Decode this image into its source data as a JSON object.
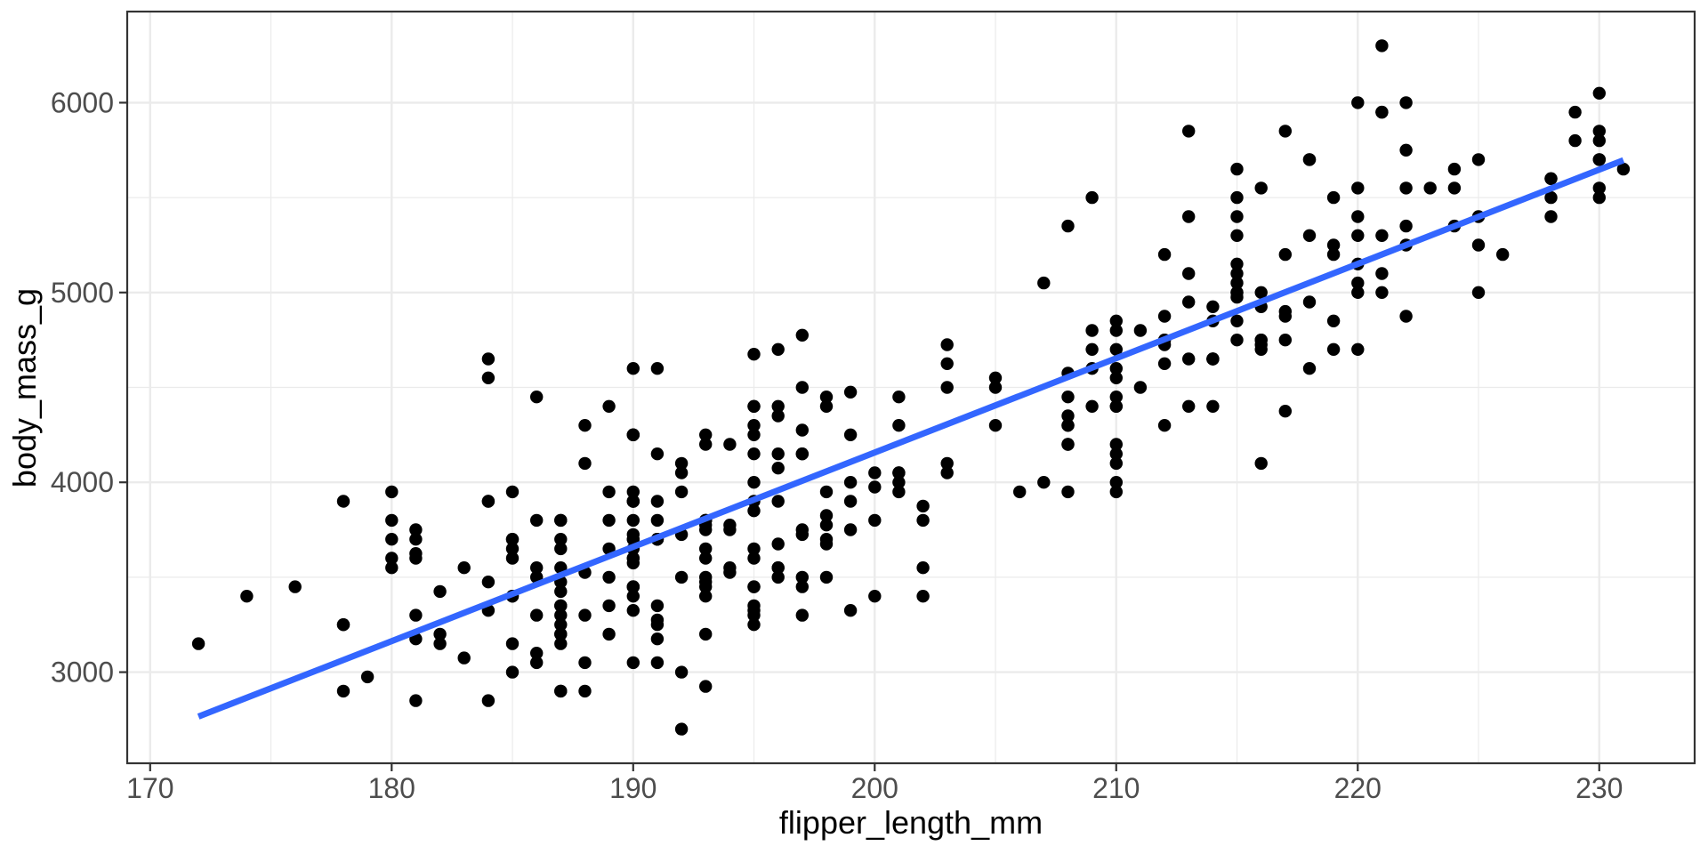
{
  "chart_data": {
    "type": "scatter",
    "title": "",
    "xlabel": "flipper_length_mm",
    "ylabel": "body_mass_g",
    "xlim": [
      169.05,
      233.95
    ],
    "ylim": [
      2520,
      6480
    ],
    "x_ticks": [
      170,
      180,
      190,
      200,
      210,
      220,
      230
    ],
    "y_ticks": [
      3000,
      4000,
      5000,
      6000
    ],
    "x_minor_gridlines": [
      175,
      185,
      195,
      205,
      215,
      225
    ],
    "y_minor_gridlines": [
      3500,
      4500,
      5500
    ],
    "grid": true,
    "legend_position": "none",
    "style": {
      "point_color": "#000000",
      "point_radius": 7.2,
      "line_color": "#3366FF",
      "line_width": 7,
      "grid_color": "#ebebeb",
      "grid_major_width": 2.4,
      "grid_minor_width": 1.2,
      "panel_border_color": "#333333",
      "panel_background": "#ffffff",
      "tick_color": "#333333",
      "tick_label_color": "#4d4d4d",
      "axis_title_color": "#000000"
    },
    "trend_line": {
      "method": "lm",
      "x1": 172,
      "y1": 2766,
      "x2": 231,
      "y2": 5697
    },
    "points": [
      [
        181,
        3750
      ],
      [
        186,
        3800
      ],
      [
        195,
        3250
      ],
      [
        193,
        3450
      ],
      [
        190,
        3650
      ],
      [
        181,
        3625
      ],
      [
        195,
        4675
      ],
      [
        193,
        3475
      ],
      [
        190,
        4250
      ],
      [
        186,
        3300
      ],
      [
        180,
        3700
      ],
      [
        182,
        3200
      ],
      [
        191,
        3800
      ],
      [
        198,
        4400
      ],
      [
        185,
        3700
      ],
      [
        195,
        3450
      ],
      [
        197,
        4500
      ],
      [
        184,
        3325
      ],
      [
        194,
        4200
      ],
      [
        174,
        3400
      ],
      [
        180,
        3600
      ],
      [
        189,
        3800
      ],
      [
        185,
        3950
      ],
      [
        180,
        3800
      ],
      [
        187,
        3800
      ],
      [
        183,
        3550
      ],
      [
        187,
        3200
      ],
      [
        172,
        3150
      ],
      [
        180,
        3950
      ],
      [
        178,
        3250
      ],
      [
        178,
        3900
      ],
      [
        188,
        3300
      ],
      [
        184,
        3900
      ],
      [
        195,
        3325
      ],
      [
        196,
        4150
      ],
      [
        190,
        3950
      ],
      [
        180,
        3550
      ],
      [
        181,
        3300
      ],
      [
        184,
        4650
      ],
      [
        182,
        3150
      ],
      [
        195,
        3900
      ],
      [
        186,
        3100
      ],
      [
        196,
        4400
      ],
      [
        185,
        3000
      ],
      [
        190,
        4600
      ],
      [
        182,
        3425
      ],
      [
        179,
        2975
      ],
      [
        190,
        3450
      ],
      [
        191,
        4150
      ],
      [
        186,
        3500
      ],
      [
        188,
        4300
      ],
      [
        190,
        3450
      ],
      [
        200,
        4050
      ],
      [
        187,
        2900
      ],
      [
        191,
        3700
      ],
      [
        186,
        3550
      ],
      [
        193,
        3800
      ],
      [
        181,
        2850
      ],
      [
        194,
        3750
      ],
      [
        185,
        3150
      ],
      [
        195,
        4400
      ],
      [
        185,
        3600
      ],
      [
        192,
        4050
      ],
      [
        184,
        2850
      ],
      [
        192,
        3950
      ],
      [
        195,
        3350
      ],
      [
        188,
        4100
      ],
      [
        190,
        3050
      ],
      [
        198,
        4450
      ],
      [
        190,
        3600
      ],
      [
        190,
        3900
      ],
      [
        196,
        3550
      ],
      [
        197,
        4150
      ],
      [
        190,
        3700
      ],
      [
        195,
        4250
      ],
      [
        191,
        3700
      ],
      [
        184,
        3900
      ],
      [
        187,
        3550
      ],
      [
        195,
        4000
      ],
      [
        189,
        3200
      ],
      [
        196,
        4700
      ],
      [
        187,
        3800
      ],
      [
        193,
        4200
      ],
      [
        191,
        3350
      ],
      [
        194,
        3550
      ],
      [
        190,
        3800
      ],
      [
        189,
        3500
      ],
      [
        189,
        3950
      ],
      [
        190,
        3600
      ],
      [
        202,
        3550
      ],
      [
        205,
        4300
      ],
      [
        185,
        3400
      ],
      [
        186,
        4450
      ],
      [
        187,
        3300
      ],
      [
        208,
        4300
      ],
      [
        190,
        3700
      ],
      [
        196,
        4350
      ],
      [
        178,
        2900
      ],
      [
        192,
        4100
      ],
      [
        192,
        3725
      ],
      [
        203,
        4725
      ],
      [
        183,
        3075
      ],
      [
        190,
        4250
      ],
      [
        193,
        2925
      ],
      [
        184,
        4550
      ],
      [
        199,
        3750
      ],
      [
        190,
        3900
      ],
      [
        181,
        3175
      ],
      [
        197,
        4775
      ],
      [
        198,
        3825
      ],
      [
        191,
        4600
      ],
      [
        193,
        3200
      ],
      [
        197,
        4275
      ],
      [
        191,
        3900
      ],
      [
        196,
        4075
      ],
      [
        188,
        2900
      ],
      [
        199,
        4250
      ],
      [
        189,
        3350
      ],
      [
        189,
        4400
      ],
      [
        187,
        3150
      ],
      [
        198,
        3500
      ],
      [
        176,
        3450
      ],
      [
        202,
        3875
      ],
      [
        186,
        3050
      ],
      [
        199,
        4000
      ],
      [
        191,
        3275
      ],
      [
        195,
        4300
      ],
      [
        191,
        3050
      ],
      [
        210,
        4000
      ],
      [
        190,
        3325
      ],
      [
        197,
        3500
      ],
      [
        193,
        3500
      ],
      [
        199,
        4475
      ],
      [
        187,
        3425
      ],
      [
        190,
        3900
      ],
      [
        191,
        3175
      ],
      [
        200,
        3975
      ],
      [
        185,
        3400
      ],
      [
        193,
        4250
      ],
      [
        193,
        3400
      ],
      [
        187,
        3475
      ],
      [
        188,
        3050
      ],
      [
        190,
        3725
      ],
      [
        192,
        3000
      ],
      [
        185,
        3650
      ],
      [
        190,
        4250
      ],
      [
        184,
        3475
      ],
      [
        195,
        3450
      ],
      [
        193,
        3750
      ],
      [
        187,
        3700
      ],
      [
        201,
        4000
      ],
      [
        192,
        3500
      ],
      [
        196,
        3900
      ],
      [
        193,
        3650
      ],
      [
        188,
        3525
      ],
      [
        197,
        3725
      ],
      [
        198,
        3950
      ],
      [
        178,
        3250
      ],
      [
        197,
        3750
      ],
      [
        195,
        4150
      ],
      [
        198,
        3700
      ],
      [
        193,
        3800
      ],
      [
        194,
        3775
      ],
      [
        185,
        3700
      ],
      [
        201,
        4050
      ],
      [
        190,
        3575
      ],
      [
        201,
        4050
      ],
      [
        197,
        3300
      ],
      [
        181,
        3700
      ],
      [
        190,
        3450
      ],
      [
        195,
        4400
      ],
      [
        181,
        3600
      ],
      [
        191,
        3700
      ],
      [
        187,
        2900
      ],
      [
        193,
        3800
      ],
      [
        195,
        3300
      ],
      [
        197,
        4150
      ],
      [
        200,
        3400
      ],
      [
        200,
        3800
      ],
      [
        191,
        3700
      ],
      [
        205,
        4550
      ],
      [
        187,
        3200
      ],
      [
        201,
        4300
      ],
      [
        187,
        3350
      ],
      [
        203,
        4100
      ],
      [
        195,
        3600
      ],
      [
        199,
        3900
      ],
      [
        195,
        3850
      ],
      [
        210,
        4800
      ],
      [
        192,
        2700
      ],
      [
        205,
        4500
      ],
      [
        210,
        3950
      ],
      [
        187,
        3650
      ],
      [
        196,
        3550
      ],
      [
        196,
        3500
      ],
      [
        196,
        3675
      ],
      [
        201,
        4450
      ],
      [
        190,
        3400
      ],
      [
        212,
        4300
      ],
      [
        187,
        3250
      ],
      [
        198,
        3675
      ],
      [
        199,
        3325
      ],
      [
        201,
        3950
      ],
      [
        193,
        3600
      ],
      [
        203,
        4500
      ],
      [
        187,
        3350
      ],
      [
        197,
        3450
      ],
      [
        191,
        3250
      ],
      [
        203,
        4050
      ],
      [
        202,
        3800
      ],
      [
        194,
        3525
      ],
      [
        206,
        3950
      ],
      [
        189,
        3650
      ],
      [
        195,
        3650
      ],
      [
        207,
        4000
      ],
      [
        202,
        3400
      ],
      [
        193,
        3775
      ],
      [
        210,
        4100
      ],
      [
        198,
        3775
      ],
      [
        211,
        4500
      ],
      [
        230,
        5700
      ],
      [
        210,
        4450
      ],
      [
        218,
        5700
      ],
      [
        215,
        5400
      ],
      [
        210,
        4550
      ],
      [
        211,
        4800
      ],
      [
        219,
        5200
      ],
      [
        209,
        4400
      ],
      [
        215,
        5150
      ],
      [
        214,
        4650
      ],
      [
        216,
        5550
      ],
      [
        214,
        4650
      ],
      [
        213,
        5850
      ],
      [
        210,
        4200
      ],
      [
        217,
        5850
      ],
      [
        210,
        4150
      ],
      [
        221,
        6300
      ],
      [
        209,
        4800
      ],
      [
        222,
        5350
      ],
      [
        218,
        5700
      ],
      [
        215,
        5000
      ],
      [
        213,
        4400
      ],
      [
        215,
        5050
      ],
      [
        215,
        5000
      ],
      [
        215,
        5100
      ],
      [
        216,
        4100
      ],
      [
        215,
        5650
      ],
      [
        210,
        4600
      ],
      [
        220,
        5550
      ],
      [
        222,
        5250
      ],
      [
        209,
        4700
      ],
      [
        207,
        5050
      ],
      [
        230,
        6050
      ],
      [
        220,
        5150
      ],
      [
        220,
        5400
      ],
      [
        213,
        4950
      ],
      [
        219,
        5250
      ],
      [
        208,
        4350
      ],
      [
        208,
        5350
      ],
      [
        208,
        3950
      ],
      [
        225,
        5700
      ],
      [
        208,
        4200
      ],
      [
        216,
        4750
      ],
      [
        222,
        5550
      ],
      [
        217,
        4750
      ],
      [
        210,
        4400
      ],
      [
        225,
        5400
      ],
      [
        213,
        5100
      ],
      [
        215,
        5300
      ],
      [
        210,
        4850
      ],
      [
        220,
        5300
      ],
      [
        210,
        4400
      ],
      [
        225,
        5000
      ],
      [
        217,
        4900
      ],
      [
        220,
        5050
      ],
      [
        208,
        4300
      ],
      [
        220,
        5000
      ],
      [
        208,
        4450
      ],
      [
        224,
        5550
      ],
      [
        208,
        4200
      ],
      [
        221,
        5300
      ],
      [
        214,
        4400
      ],
      [
        231,
        5650
      ],
      [
        219,
        4700
      ],
      [
        230,
        5700
      ],
      [
        214,
        4650
      ],
      [
        229,
        5800
      ],
      [
        220,
        4700
      ],
      [
        223,
        5550
      ],
      [
        216,
        4750
      ],
      [
        221,
        5000
      ],
      [
        221,
        5100
      ],
      [
        217,
        5200
      ],
      [
        216,
        4700
      ],
      [
        230,
        5800
      ],
      [
        209,
        4600
      ],
      [
        220,
        6000
      ],
      [
        215,
        4750
      ],
      [
        221,
        5950
      ],
      [
        212,
        4625
      ],
      [
        221,
        5950
      ],
      [
        212,
        4725
      ],
      [
        224,
        5350
      ],
      [
        212,
        4750
      ],
      [
        228,
        5600
      ],
      [
        218,
        4600
      ],
      [
        218,
        5300
      ],
      [
        212,
        4875
      ],
      [
        230,
        5550
      ],
      [
        218,
        4950
      ],
      [
        228,
        5400
      ],
      [
        212,
        4750
      ],
      [
        224,
        5650
      ],
      [
        214,
        4850
      ],
      [
        226,
        5200
      ],
      [
        216,
        4925
      ],
      [
        222,
        4875
      ],
      [
        203,
        4625
      ],
      [
        225,
        5250
      ],
      [
        219,
        4850
      ],
      [
        228,
        5600
      ],
      [
        215,
        4975
      ],
      [
        228,
        5500
      ],
      [
        216,
        4725
      ],
      [
        215,
        5500
      ],
      [
        210,
        4700
      ],
      [
        219,
        5500
      ],
      [
        208,
        4575
      ],
      [
        209,
        5500
      ],
      [
        216,
        5000
      ],
      [
        229,
        5950
      ],
      [
        213,
        4650
      ],
      [
        230,
        5500
      ],
      [
        217,
        4375
      ],
      [
        230,
        5850
      ],
      [
        217,
        4875
      ],
      [
        222,
        6000
      ],
      [
        214,
        4925
      ],
      [
        215,
        4850
      ],
      [
        222,
        5750
      ],
      [
        212,
        5200
      ],
      [
        213,
        5400
      ]
    ]
  }
}
